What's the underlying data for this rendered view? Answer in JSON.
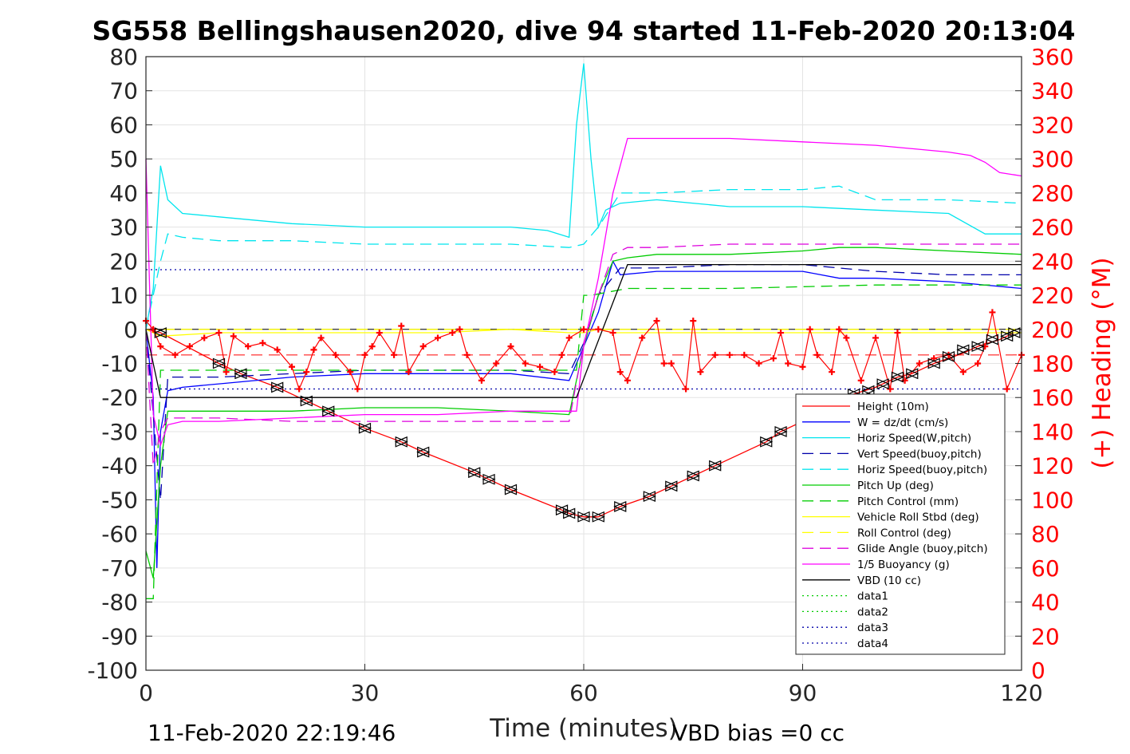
{
  "chart_data": {
    "type": "line",
    "title": "SG558 Bellingshausen2020, dive 94 started 11-Feb-2020 20:13:04",
    "xlabel": "Time (minutes)",
    "ylabel_right": "(+) Heading (°M)",
    "xlim": [
      0,
      120
    ],
    "ylim": [
      -100,
      80
    ],
    "y2lim": [
      0,
      360
    ],
    "xticks": [
      "0",
      "30",
      "60",
      "90",
      "120"
    ],
    "yticks": [
      "80",
      "70",
      "60",
      "50",
      "40",
      "30",
      "20",
      "10",
      "0",
      "-10",
      "-20",
      "-30",
      "-40",
      "-50",
      "-60",
      "-70",
      "-80",
      "-90",
      "-100"
    ],
    "y2ticks": [
      "360",
      "340",
      "320",
      "300",
      "280",
      "260",
      "240",
      "220",
      "200",
      "180",
      "160",
      "140",
      "120",
      "100",
      "80",
      "60",
      "40",
      "20",
      "0"
    ],
    "grid": true,
    "legend_position": "bottom-right",
    "footer_left": "11-Feb-2020 22:19:46",
    "footer_right": "VBD bias =0 cc",
    "series": [
      {
        "name": "Height (10m)",
        "color": "#ff0000",
        "style": "solid",
        "x": [
          0,
          2,
          10,
          13,
          18,
          22,
          25,
          30,
          35,
          38,
          45,
          47,
          50,
          57,
          58,
          60,
          62,
          65,
          69,
          72,
          75,
          78,
          85,
          87,
          95,
          97,
          100,
          103,
          105,
          108,
          112,
          114,
          117,
          119
        ],
        "y": [
          0,
          -1,
          -10,
          -13,
          -17,
          -21,
          -24,
          -29,
          -33,
          -36,
          -42,
          -44,
          -47,
          -53,
          -54,
          -55,
          -55,
          -52,
          -49,
          -46,
          -43,
          -40,
          -33,
          -30,
          -22,
          -19,
          -17,
          -14,
          -13,
          -10,
          -7,
          -5,
          -3,
          -1
        ]
      },
      {
        "name": "W = dz/dt (cm/s)",
        "color": "#0000ff",
        "style": "solid",
        "x": [
          0,
          1,
          1.5,
          2,
          3,
          5,
          10,
          20,
          30,
          40,
          50,
          58,
          60,
          62,
          64,
          65,
          70,
          80,
          90,
          95,
          100,
          110,
          120
        ],
        "y": [
          0,
          -20,
          -70,
          -30,
          -18,
          -17,
          -16,
          -14,
          -13,
          -13,
          -13,
          -15,
          -5,
          5,
          20,
          16,
          17,
          17,
          17,
          15,
          15,
          14,
          12
        ]
      },
      {
        "name": "Horiz Speed(W,pitch)",
        "color": "#00e5ee",
        "style": "solid",
        "x": [
          0,
          1,
          2,
          3,
          5,
          10,
          20,
          30,
          40,
          50,
          55,
          58,
          59,
          60,
          61,
          62,
          63,
          65,
          70,
          80,
          90,
          100,
          110,
          115,
          120
        ],
        "y": [
          0,
          12,
          48,
          38,
          34,
          33,
          31,
          30,
          30,
          30,
          29,
          27,
          60,
          78,
          50,
          30,
          35,
          37,
          38,
          36,
          36,
          35,
          34,
          28,
          28
        ]
      },
      {
        "name": "Vert Speed(buoy,pitch)",
        "color": "#0000aa",
        "style": "dashed",
        "x": [
          0,
          2,
          3,
          10,
          20,
          30,
          40,
          50,
          58,
          60,
          62,
          65,
          70,
          80,
          90,
          95,
          100,
          110,
          120
        ],
        "y": [
          0,
          -50,
          -14,
          -14,
          -13,
          -12,
          -12,
          -12,
          -13,
          -4,
          10,
          18,
          18,
          19,
          19,
          18,
          17,
          16,
          16
        ]
      },
      {
        "name": "Horiz Speed(buoy,pitch)",
        "color": "#00e5ee",
        "style": "dashed",
        "x": [
          0,
          2,
          3,
          5,
          10,
          20,
          30,
          40,
          50,
          58,
          60,
          62,
          65,
          70,
          80,
          90,
          95,
          100,
          110,
          120
        ],
        "y": [
          0,
          20,
          28,
          27,
          26,
          26,
          25,
          25,
          25,
          24,
          25,
          30,
          40,
          40,
          41,
          41,
          42,
          38,
          38,
          37
        ]
      },
      {
        "name": "Pitch Up (deg)",
        "color": "#00cc00",
        "style": "solid",
        "x": [
          0,
          1,
          2,
          3,
          10,
          20,
          30,
          40,
          50,
          58,
          60,
          62,
          64,
          66,
          70,
          80,
          90,
          95,
          100,
          110,
          120
        ],
        "y": [
          -65,
          -73,
          -40,
          -24,
          -24,
          -24,
          -23,
          -23,
          -24,
          -25,
          -5,
          10,
          20,
          21,
          22,
          22,
          23,
          24,
          24,
          23,
          22
        ]
      },
      {
        "name": "Pitch Control (mm)",
        "color": "#00cc00",
        "style": "dashed",
        "x": [
          0,
          1,
          2,
          3,
          10,
          30,
          50,
          58,
          59,
          60,
          61,
          66,
          80,
          100,
          120
        ],
        "y": [
          -79,
          -79,
          -12,
          -12,
          -12,
          -12,
          -12,
          -12,
          -12,
          10,
          10,
          12,
          12,
          13,
          13
        ]
      },
      {
        "name": "Vehicle Roll Stbd (deg)",
        "color": "#ffff00",
        "style": "solid",
        "x": [
          0,
          2,
          10,
          20,
          30,
          40,
          50,
          58,
          60,
          62,
          64,
          66,
          70,
          80,
          90,
          100,
          110,
          120
        ],
        "y": [
          0,
          -2,
          -1,
          -1,
          -1,
          -1,
          0,
          -1,
          -1,
          0,
          -1,
          -1,
          -1,
          -1,
          -1,
          -1,
          -1,
          -1
        ]
      },
      {
        "name": "Roll Control (deg)",
        "color": "#ffff00",
        "style": "dashed",
        "x": [
          0,
          10,
          20,
          30,
          40,
          50,
          60,
          70,
          80,
          90,
          100,
          110,
          120
        ],
        "y": [
          0,
          0,
          0,
          0,
          0,
          0,
          0,
          0,
          0,
          0,
          0,
          0,
          0
        ]
      },
      {
        "name": "Glide Angle (buoy,pitch)",
        "color": "#dd00dd",
        "style": "dashed",
        "x": [
          0,
          1,
          2,
          3,
          10,
          20,
          30,
          40,
          50,
          58,
          60,
          62,
          64,
          66,
          70,
          80,
          90,
          100,
          110,
          120
        ],
        "y": [
          0,
          -40,
          -30,
          -26,
          -26,
          -27,
          -27,
          -27,
          -27,
          -27,
          -4,
          10,
          22,
          24,
          24,
          25,
          25,
          25,
          25,
          25
        ]
      },
      {
        "name": "1/5 Buoyancy (g)",
        "color": "#ff00ff",
        "style": "solid",
        "x": [
          0,
          1,
          2,
          3,
          5,
          10,
          20,
          30,
          40,
          50,
          58,
          59,
          60,
          62,
          64,
          66,
          70,
          80,
          90,
          100,
          110,
          113,
          115,
          117,
          120
        ],
        "y": [
          50,
          -25,
          -34,
          -28,
          -27,
          -27,
          -26,
          -25,
          -25,
          -24,
          -24,
          -24,
          -5,
          15,
          40,
          56,
          56,
          56,
          55,
          54,
          52,
          51,
          49,
          46,
          45
        ]
      },
      {
        "name": "VBD (10 cc)",
        "color": "#000000",
        "style": "solid",
        "x": [
          0,
          2,
          3,
          30,
          58,
          59,
          66,
          120
        ],
        "y": [
          0,
          -20,
          -20,
          -20,
          -20,
          -20,
          19,
          19
        ]
      },
      {
        "name": "data1",
        "color": "#00cc00",
        "style": "dotted",
        "x": [],
        "y": []
      },
      {
        "name": "data2",
        "color": "#00cc00",
        "style": "dotted",
        "x": [],
        "y": []
      },
      {
        "name": "data3",
        "color": "#0000aa",
        "style": "dotted",
        "x": [
          0,
          120
        ],
        "y": [
          -17.5,
          -17.5
        ]
      },
      {
        "name": "data4",
        "color": "#0000aa",
        "style": "dotted",
        "x": [
          0,
          60
        ],
        "y": [
          17.5,
          17.5
        ]
      }
    ],
    "heading": {
      "color": "#ff0000",
      "marker": "+",
      "axis": "right",
      "x": [
        0,
        1,
        2,
        4,
        6,
        8,
        10,
        11,
        12,
        14,
        16,
        18,
        20,
        21,
        22,
        23,
        24,
        26,
        28,
        29,
        30,
        31,
        32,
        34,
        35,
        36,
        38,
        40,
        42,
        43,
        44,
        46,
        48,
        50,
        52,
        54,
        56,
        57,
        58,
        60,
        62,
        64,
        65,
        66,
        68,
        70,
        71,
        72,
        74,
        75,
        76,
        78,
        80,
        82,
        84,
        86,
        87,
        88,
        90,
        91,
        92,
        94,
        95,
        96,
        98,
        100,
        102,
        103,
        104,
        106,
        108,
        110,
        112,
        114,
        115,
        116,
        118,
        120
      ],
      "y": [
        205,
        200,
        190,
        185,
        190,
        195,
        198,
        175,
        196,
        190,
        192,
        188,
        178,
        165,
        175,
        188,
        195,
        185,
        175,
        165,
        185,
        190,
        198,
        185,
        202,
        175,
        190,
        195,
        198,
        200,
        185,
        170,
        180,
        190,
        180,
        178,
        175,
        185,
        195,
        200,
        200,
        198,
        175,
        170,
        195,
        205,
        180,
        180,
        165,
        205,
        175,
        185,
        185,
        185,
        180,
        183,
        198,
        180,
        178,
        200,
        185,
        175,
        200,
        195,
        170,
        195,
        165,
        198,
        170,
        180,
        183,
        185,
        175,
        180,
        190,
        210,
        165,
        185
      ]
    },
    "ref_lines": [
      {
        "color": "#ff0000",
        "style": "dashed",
        "value": -7.5
      },
      {
        "color": "#000000",
        "style": "solid",
        "value": 0
      }
    ],
    "markers": {
      "x": [
        2,
        10,
        13,
        18,
        22,
        25,
        30,
        35,
        38,
        45,
        47,
        50,
        57,
        58,
        60,
        62,
        65,
        69,
        72,
        75,
        78,
        85,
        87,
        97,
        99,
        101,
        103,
        105,
        108,
        110,
        112,
        114,
        116,
        118,
        119
      ],
      "y": [
        -1,
        -10,
        -13,
        -17,
        -21,
        -24,
        -29,
        -33,
        -36,
        -42,
        -44,
        -47,
        -53,
        -54,
        -55,
        -55,
        -52,
        -49,
        -46,
        -43,
        -40,
        -33,
        -30,
        -19,
        -18,
        -16,
        -14,
        -13,
        -10,
        -8,
        -6,
        -5,
        -3,
        -2,
        -1
      ]
    }
  }
}
